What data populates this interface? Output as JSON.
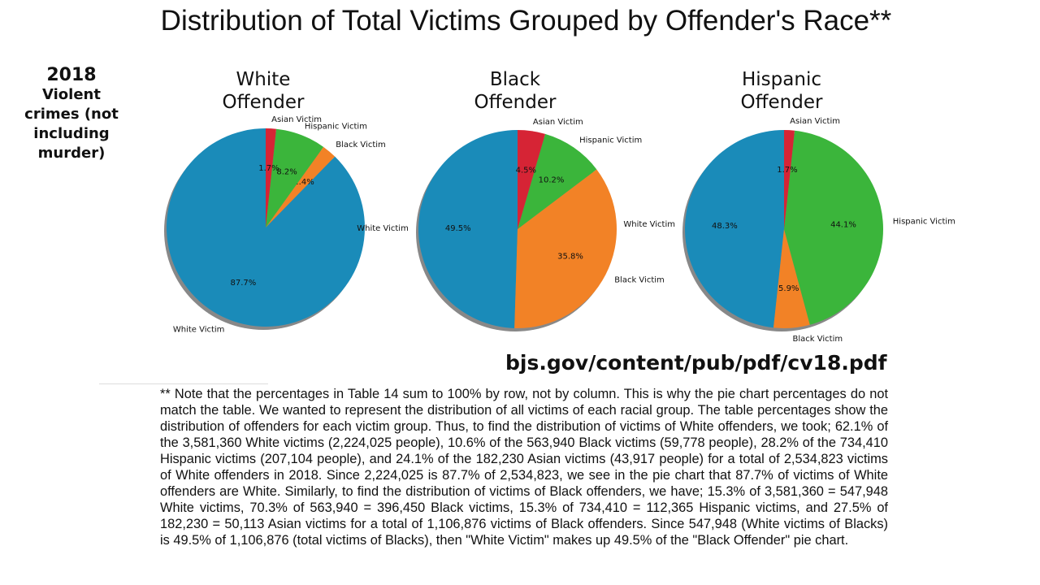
{
  "title": "Distribution of Total Victims Grouped by Offender's Race**",
  "side": {
    "year": "2018",
    "desc": "Violent crimes (not including murder)"
  },
  "source": "bjs.gov/content/pub/pdf/cv18.pdf",
  "note": "** Note that the percentages in Table 14 sum to 100% by row, not by column. This is why the pie chart percentages do not match the table. We wanted to represent the distribution of all victims of each racial group. The table percentages show the distribution of offenders for each victim group. Thus, to find the distribution of victims of White offenders, we took; 62.1% of the 3,581,360 White victims (2,224,025 people), 10.6% of the 563,940 Black victims (59,778 people), 28.2% of the 734,410 Hispanic victims (207,104 people), and 24.1% of the 182,230 Asian victims (43,917 people) for a total of 2,534,823 victims of White offenders in 2018. Since 2,224,025 is 87.7% of 2,534,823, we see in the pie chart that 87.7% of victims of White offenders are White. Similarly, to find the distribution of victims of Black offenders, we have; 15.3% of 3,581,360 = 547,948 White victims, 70.3% of 563,940 = 396,450 Black victims, 15.3% of 734,410 = 112,365 Hispanic victims, and 27.5% of 182,230 = 50,113 Asian victims for a total of 1,106,876 victims of Black offenders. Since 547,948 (White victims of Blacks) is 49.5% of 1,106,876 (total victims of Blacks), then \"White Victim\" makes up 49.5% of the \"Black Offender\" pie chart.",
  "chart_data": [
    {
      "type": "pie",
      "title": "White Offender",
      "categories": [
        "White Victim",
        "Black Victim",
        "Hispanic Victim",
        "Asian Victim"
      ],
      "values": [
        87.7,
        2.4,
        8.2,
        1.7
      ],
      "colors": [
        "#1a8bb9",
        "#f28226",
        "#3bb53b",
        "#d62435"
      ],
      "start_angle": 90,
      "direction": "counterclockwise",
      "shadow": true
    },
    {
      "type": "pie",
      "title": "Black Offender",
      "categories": [
        "White Victim",
        "Black Victim",
        "Hispanic Victim",
        "Asian Victim"
      ],
      "values": [
        49.5,
        35.8,
        10.2,
        4.5
      ],
      "colors": [
        "#1a8bb9",
        "#f28226",
        "#3bb53b",
        "#d62435"
      ],
      "start_angle": 90,
      "direction": "counterclockwise",
      "shadow": true
    },
    {
      "type": "pie",
      "title": "Hispanic Offender",
      "categories": [
        "White Victim",
        "Black Victim",
        "Hispanic Victim",
        "Asian Victim"
      ],
      "values": [
        48.3,
        5.9,
        44.1,
        1.7
      ],
      "colors": [
        "#1a8bb9",
        "#f28226",
        "#3bb53b",
        "#d62435"
      ],
      "start_angle": 90,
      "direction": "counterclockwise",
      "shadow": true
    }
  ]
}
